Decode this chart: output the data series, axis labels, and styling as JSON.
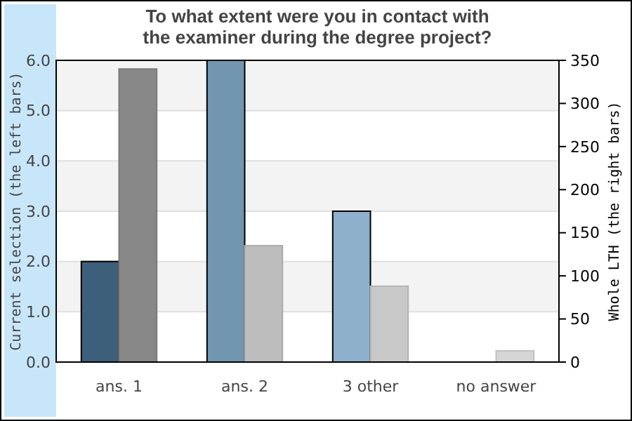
{
  "chart_data": {
    "type": "bar",
    "title": "To what extent were you in contact with\nthe examiner during the degree project?",
    "ylabel": "Current selection (the left bars)",
    "y2label": "Whole LTH (the right bars)",
    "categories": [
      "ans. 1",
      "ans. 2",
      "3 other",
      "no answer"
    ],
    "series": [
      {
        "colors": [
          "#3d5f7c",
          "#7295b0",
          "#8eb0cc",
          "#a9c6de"
        ],
        "values": [
          2,
          6,
          3,
          0
        ]
      },
      {
        "axis": "y2",
        "colors": [
          "#888888",
          "#bdbdbd",
          "#c8c8c8",
          "#d6d6d6"
        ],
        "values": [
          340,
          135,
          88,
          13
        ]
      }
    ],
    "ylim": [
      0,
      6
    ],
    "yticks": [
      {
        "value": 0,
        "label": "0.0"
      },
      {
        "value": 1,
        "label": "1.0"
      },
      {
        "value": 2,
        "label": "2.0"
      },
      {
        "value": 3,
        "label": "3.0"
      },
      {
        "value": 4,
        "label": "4.0"
      },
      {
        "value": 5,
        "label": "5.0"
      },
      {
        "value": 6,
        "label": "6.0"
      }
    ],
    "y2lim": [
      0,
      350
    ],
    "y2ticks": [
      0,
      50,
      100,
      150,
      200,
      250,
      300,
      350
    ],
    "grid": "y"
  }
}
